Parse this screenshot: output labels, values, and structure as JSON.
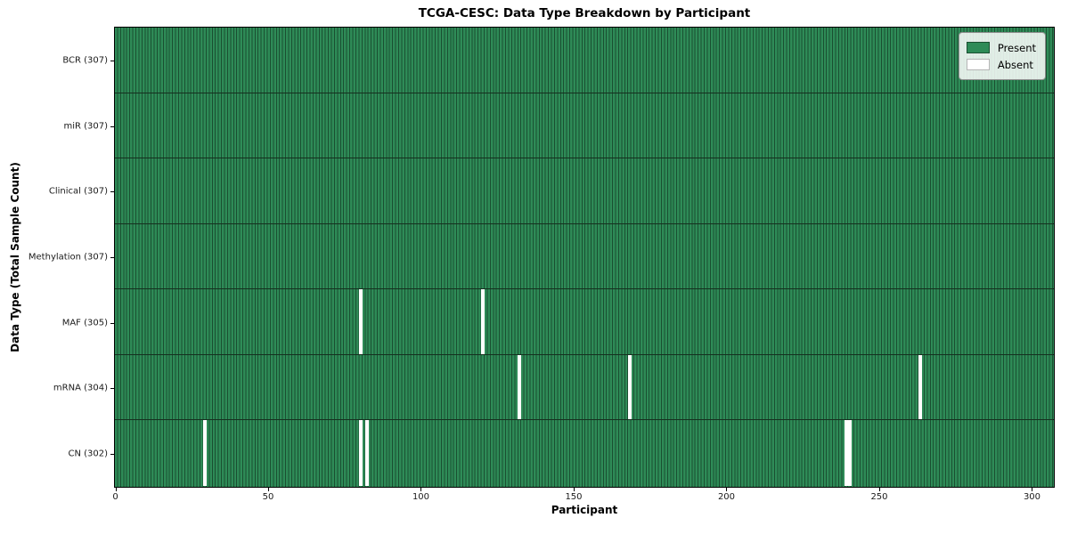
{
  "chart_data": {
    "type": "heatmap",
    "title": "TCGA-CESC: Data Type Breakdown by Participant",
    "xlabel": "Participant",
    "ylabel": "Data Type (Total Sample Count)",
    "x_ticks": [
      0,
      50,
      100,
      150,
      200,
      250,
      300
    ],
    "x_range": [
      0,
      307
    ],
    "n_participants": 307,
    "rows": [
      {
        "name": "BCR",
        "label": "BCR (307)",
        "count": 307,
        "absent_participants": []
      },
      {
        "name": "miR",
        "label": "miR (307)",
        "count": 307,
        "absent_participants": []
      },
      {
        "name": "Clinical",
        "label": "Clinical (307)",
        "count": 307,
        "absent_participants": []
      },
      {
        "name": "Methylation",
        "label": "Methylation (307)",
        "count": 307,
        "absent_participants": []
      },
      {
        "name": "MAF",
        "label": "MAF (305)",
        "count": 305,
        "absent_participants": [
          80,
          120
        ]
      },
      {
        "name": "mRNA",
        "label": "mRNA (304)",
        "count": 304,
        "absent_participants": [
          132,
          168,
          263
        ]
      },
      {
        "name": "CN",
        "label": "CN (302)",
        "count": 302,
        "absent_participants": [
          29,
          80,
          82,
          239,
          240
        ]
      }
    ],
    "legend": [
      {
        "label": "Present",
        "color": "#2e8b57"
      },
      {
        "label": "Absent",
        "color": "#ffffff"
      }
    ],
    "legend_position": "upper right",
    "colors": {
      "present": "#2e8b57",
      "absent": "#ffffff",
      "grid_line": "#1a4f31",
      "row_divider": "#15301f",
      "spine": "#000000"
    },
    "grid": "per-participant vertical cell edges, horizontal row dividers"
  }
}
